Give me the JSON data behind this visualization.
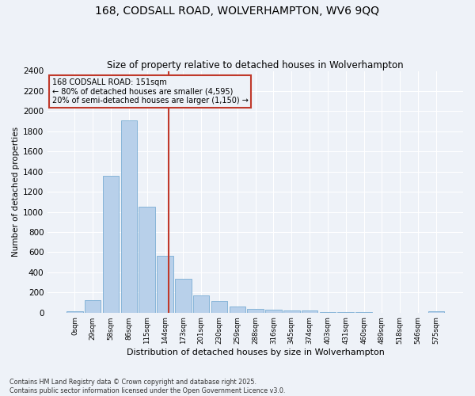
{
  "title1": "168, CODSALL ROAD, WOLVERHAMPTON, WV6 9QQ",
  "title2": "Size of property relative to detached houses in Wolverhampton",
  "xlabel": "Distribution of detached houses by size in Wolverhampton",
  "ylabel": "Number of detached properties",
  "bar_color": "#b8d0ea",
  "bar_edge_color": "#7aadd4",
  "categories": [
    "0sqm",
    "29sqm",
    "58sqm",
    "86sqm",
    "115sqm",
    "144sqm",
    "173sqm",
    "201sqm",
    "230sqm",
    "259sqm",
    "288sqm",
    "316sqm",
    "345sqm",
    "374sqm",
    "403sqm",
    "431sqm",
    "460sqm",
    "489sqm",
    "518sqm",
    "546sqm",
    "575sqm"
  ],
  "values": [
    10,
    125,
    1360,
    1910,
    1055,
    560,
    335,
    170,
    115,
    60,
    35,
    28,
    22,
    18,
    5,
    3,
    2,
    1,
    1,
    0,
    10
  ],
  "ylim": [
    0,
    2400
  ],
  "yticks": [
    0,
    200,
    400,
    600,
    800,
    1000,
    1200,
    1400,
    1600,
    1800,
    2000,
    2200,
    2400
  ],
  "vline_color": "#c0392b",
  "annotation_text": "168 CODSALL ROAD: 151sqm\n← 80% of detached houses are smaller (4,595)\n20% of semi-detached houses are larger (1,150) →",
  "annotation_box_color": "#c0392b",
  "footer": "Contains HM Land Registry data © Crown copyright and database right 2025.\nContains public sector information licensed under the Open Government Licence v3.0.",
  "background_color": "#eef2f8",
  "grid_color": "#ffffff"
}
